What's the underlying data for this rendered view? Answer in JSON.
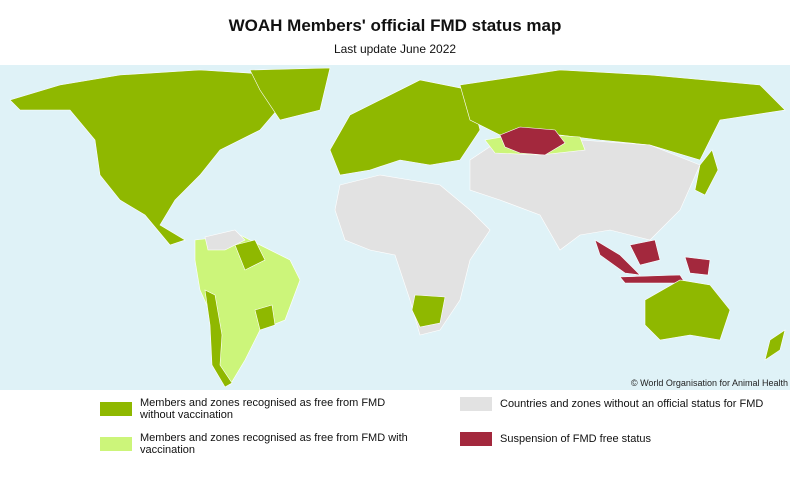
{
  "header": {
    "title": "WOAH Members' official FMD status map",
    "subtitle": "Last update June 2022"
  },
  "copyright": "© World Organisation for Animal Health",
  "legend": [
    {
      "label": "Members and zones recognised as free from FMD without vaccination",
      "color": "#8fb800"
    },
    {
      "label": "Members and zones recognised as free from FMD with vaccination",
      "color": "#ccf57a"
    },
    {
      "label": "Countries and zones without an official status for FMD",
      "color": "#e2e2e2"
    },
    {
      "label": "Suspension of FMD free status",
      "color": "#a3283d"
    }
  ]
}
